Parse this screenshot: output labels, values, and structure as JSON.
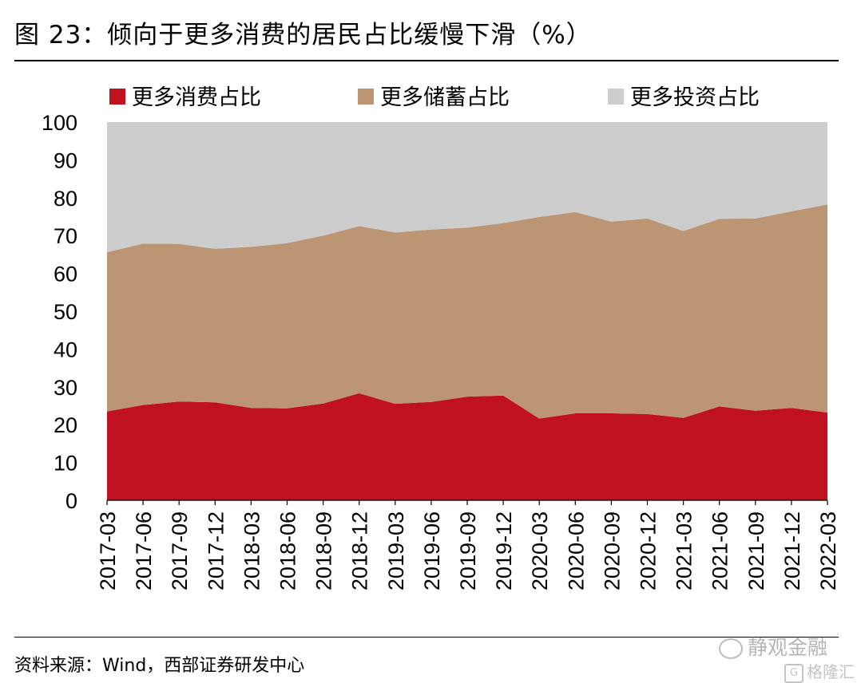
{
  "title": "图 23：倾向于更多消费的居民占比缓慢下滑（%）",
  "source": "资料来源：Wind，西部证券研发中心",
  "watermarks": {
    "primary": "静观金融",
    "secondary": "格隆汇",
    "primary_icon": "wechat-icon",
    "secondary_icon": "gelonghui-logo-icon"
  },
  "chart_data": {
    "type": "area",
    "stacked": true,
    "categories": [
      "2017-03",
      "2017-06",
      "2017-09",
      "2017-12",
      "2018-03",
      "2018-06",
      "2018-09",
      "2018-12",
      "2019-03",
      "2019-06",
      "2019-09",
      "2019-12",
      "2020-03",
      "2020-06",
      "2020-09",
      "2020-12",
      "2021-03",
      "2021-06",
      "2021-09",
      "2021-12",
      "2022-03"
    ],
    "series": [
      {
        "name": "更多消费占比",
        "color": "#c0111f",
        "values": [
          23.5,
          25.2,
          26.1,
          25.9,
          24.4,
          24.3,
          25.6,
          28.3,
          25.5,
          26.0,
          27.4,
          27.7,
          21.6,
          23.0,
          23.0,
          22.8,
          21.8,
          24.8,
          23.7,
          24.4,
          23.2
        ]
      },
      {
        "name": "更多储蓄占比",
        "color": "#bc9674",
        "values": [
          42.1,
          42.7,
          41.7,
          40.6,
          42.6,
          43.7,
          44.4,
          44.2,
          45.3,
          45.6,
          44.7,
          45.6,
          53.3,
          53.2,
          50.7,
          51.7,
          49.4,
          49.6,
          50.8,
          52.0,
          55.0
        ]
      },
      {
        "name": "更多投资占比",
        "color": "#cdcdcd",
        "values": [
          34.4,
          32.1,
          32.2,
          33.5,
          33.0,
          32.0,
          30.0,
          27.5,
          29.2,
          28.4,
          27.9,
          26.7,
          25.1,
          23.8,
          26.3,
          25.5,
          28.8,
          25.6,
          25.5,
          23.6,
          21.8
        ]
      }
    ],
    "ylim": [
      0,
      100
    ],
    "yticks": [
      "0",
      "10",
      "20",
      "30",
      "40",
      "50",
      "60",
      "70",
      "80",
      "90",
      "100"
    ],
    "xlabel": "",
    "ylabel": "",
    "legend_position": "top"
  }
}
